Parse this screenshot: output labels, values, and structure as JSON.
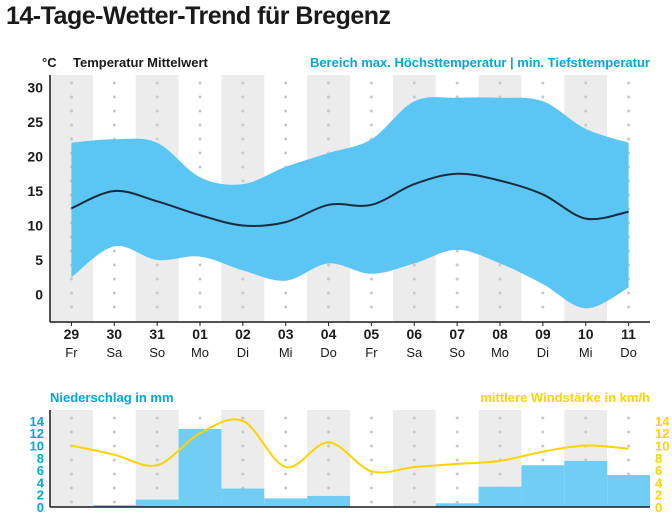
{
  "title": "14-Tage-Wetter-Trend für Bregenz",
  "colors": {
    "range_fill": "#5bc6f4",
    "mean_line": "#1b2a3a",
    "precip_bar": "#71cdf4",
    "wind_line": "#ffd200",
    "label_blue": "#00a7e1",
    "label_yellow": "#ffd200",
    "stripe": "#ececec"
  },
  "chart_data": [
    {
      "type": "area",
      "title": "",
      "unit_label": "°C",
      "legend_left": "Temperatur Mittelwert",
      "legend_right": "Bereich max. Höchsttemperatur | min. Tiefsttemperatur",
      "categories": [
        "29",
        "30",
        "31",
        "01",
        "02",
        "03",
        "04",
        "05",
        "06",
        "07",
        "08",
        "09",
        "10",
        "11"
      ],
      "weekdays": [
        "Fr",
        "Sa",
        "So",
        "Mo",
        "Di",
        "Mi",
        "Do",
        "Fr",
        "Sa",
        "So",
        "Mo",
        "Di",
        "Mi",
        "Do"
      ],
      "yticks": [
        0,
        5,
        10,
        15,
        20,
        25,
        30
      ],
      "ylim": [
        -4,
        30
      ],
      "grid": "vertical stripes and dots",
      "series": [
        {
          "name": "Temperatur Mittelwert",
          "values": [
            12.5,
            15,
            13.5,
            11.5,
            10,
            10.5,
            13,
            13,
            16,
            17.5,
            16.5,
            14.5,
            11,
            12
          ]
        },
        {
          "name": "max. Höchsttemperatur",
          "values": [
            22,
            22.5,
            22,
            17,
            16,
            18.5,
            20.5,
            22.5,
            28,
            28.5,
            28.5,
            28,
            24,
            22
          ]
        },
        {
          "name": "min. Tiefsttemperatur",
          "values": [
            2.5,
            7,
            5,
            5.5,
            3.5,
            2,
            4.5,
            3,
            4.5,
            6.5,
            4.5,
            1.5,
            -2,
            1
          ]
        }
      ]
    },
    {
      "type": "bar",
      "title": "",
      "legend_left": "Niederschlag in mm",
      "legend_right": "mittlere Windstärke in km/h",
      "categories": [
        "29",
        "30",
        "31",
        "01",
        "02",
        "03",
        "04",
        "05",
        "06",
        "07",
        "08",
        "09",
        "10",
        "11"
      ],
      "yticks_left": [
        0,
        2,
        4,
        6,
        8,
        10,
        12,
        14
      ],
      "yticks_right": [
        0,
        2,
        4,
        6,
        8,
        10,
        12,
        14
      ],
      "ylim": [
        0,
        14
      ],
      "series": [
        {
          "name": "Niederschlag in mm",
          "type": "bar",
          "values": [
            0,
            0.3,
            1.2,
            12.7,
            3,
            1.4,
            1.8,
            0,
            0,
            0.6,
            3.3,
            6.8,
            7.5,
            5.2
          ]
        },
        {
          "name": "mittlere Windstärke in km/h",
          "type": "line",
          "values": [
            10,
            8.5,
            6.8,
            12,
            14,
            6.5,
            10.5,
            5.8,
            6.5,
            7,
            7.5,
            9,
            10,
            9.5
          ]
        }
      ]
    }
  ]
}
